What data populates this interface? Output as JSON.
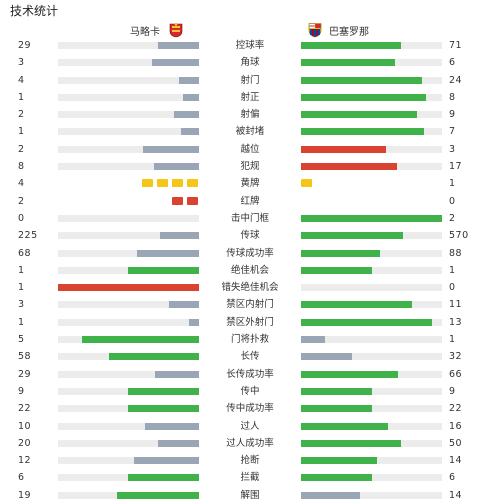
{
  "title": "技术统计",
  "home": {
    "name": "马略卡",
    "logo_icon": "mallorca-crest-icon",
    "logo_colors": [
      "#d12b2b",
      "#f1c232"
    ]
  },
  "away": {
    "name": "巴塞罗那",
    "logo_icon": "barcelona-crest-icon",
    "logo_colors": [
      "#a50044",
      "#004d98",
      "#edbb00"
    ]
  },
  "colors": {
    "green": "#3fb24a",
    "gray": "#9aa6b5",
    "red": "#d9432f",
    "yellow": "#f5c518",
    "track": "#ececec"
  },
  "stats": [
    {
      "label": "控球率",
      "home": "29",
      "away": "71",
      "home_fill": 0.29,
      "away_fill": 0.71,
      "home_color": "gray",
      "away_color": "green"
    },
    {
      "label": "角球",
      "home": "3",
      "away": "6",
      "home_fill": 0.33,
      "away_fill": 0.67,
      "home_color": "gray",
      "away_color": "green"
    },
    {
      "label": "射门",
      "home": "4",
      "away": "24",
      "home_fill": 0.14,
      "away_fill": 0.86,
      "home_color": "gray",
      "away_color": "green"
    },
    {
      "label": "射正",
      "home": "1",
      "away": "8",
      "home_fill": 0.11,
      "away_fill": 0.89,
      "home_color": "gray",
      "away_color": "green"
    },
    {
      "label": "射偏",
      "home": "2",
      "away": "9",
      "home_fill": 0.18,
      "away_fill": 0.82,
      "home_color": "gray",
      "away_color": "green"
    },
    {
      "label": "被封堵",
      "home": "1",
      "away": "7",
      "home_fill": 0.125,
      "away_fill": 0.875,
      "home_color": "gray",
      "away_color": "green"
    },
    {
      "label": "越位",
      "home": "2",
      "away": "3",
      "home_fill": 0.4,
      "away_fill": 0.6,
      "home_color": "gray",
      "away_color": "red"
    },
    {
      "label": "犯规",
      "home": "8",
      "away": "17",
      "home_fill": 0.32,
      "away_fill": 0.68,
      "home_color": "gray",
      "away_color": "red"
    },
    {
      "label": "黄牌",
      "home": "4",
      "away": "1",
      "cards": "yellow",
      "home_cards": 4,
      "away_cards": 1
    },
    {
      "label": "红牌",
      "home": "2",
      "away": "0",
      "cards": "red",
      "home_cards": 2,
      "away_cards": 0
    },
    {
      "label": "击中门框",
      "home": "0",
      "away": "2",
      "home_fill": 0,
      "away_fill": 1.0,
      "home_color": "gray",
      "away_color": "green"
    },
    {
      "label": "传球",
      "home": "225",
      "away": "570",
      "home_fill": 0.28,
      "away_fill": 0.72,
      "home_color": "gray",
      "away_color": "green"
    },
    {
      "label": "传球成功率",
      "home": "68",
      "away": "88",
      "home_fill": 0.44,
      "away_fill": 0.56,
      "home_color": "gray",
      "away_color": "green"
    },
    {
      "label": "绝佳机会",
      "home": "1",
      "away": "1",
      "home_fill": 0.5,
      "away_fill": 0.5,
      "home_color": "green",
      "away_color": "green"
    },
    {
      "label": "错失绝佳机会",
      "home": "1",
      "away": "0",
      "home_fill": 1.0,
      "away_fill": 0,
      "home_color": "red",
      "away_color": "red"
    },
    {
      "label": "禁区内射门",
      "home": "3",
      "away": "11",
      "home_fill": 0.21,
      "away_fill": 0.79,
      "home_color": "gray",
      "away_color": "green"
    },
    {
      "label": "禁区外射门",
      "home": "1",
      "away": "13",
      "home_fill": 0.07,
      "away_fill": 0.93,
      "home_color": "gray",
      "away_color": "green"
    },
    {
      "label": "门将扑救",
      "home": "5",
      "away": "1",
      "home_fill": 0.83,
      "away_fill": 0.17,
      "home_color": "green",
      "away_color": "gray"
    },
    {
      "label": "长传",
      "home": "58",
      "away": "32",
      "home_fill": 0.64,
      "away_fill": 0.36,
      "home_color": "green",
      "away_color": "gray"
    },
    {
      "label": "长传成功率",
      "home": "29",
      "away": "66",
      "home_fill": 0.31,
      "away_fill": 0.69,
      "home_color": "gray",
      "away_color": "green"
    },
    {
      "label": "传中",
      "home": "9",
      "away": "9",
      "home_fill": 0.5,
      "away_fill": 0.5,
      "home_color": "green",
      "away_color": "green"
    },
    {
      "label": "传中成功率",
      "home": "22",
      "away": "22",
      "home_fill": 0.5,
      "away_fill": 0.5,
      "home_color": "green",
      "away_color": "green"
    },
    {
      "label": "过人",
      "home": "10",
      "away": "16",
      "home_fill": 0.38,
      "away_fill": 0.62,
      "home_color": "gray",
      "away_color": "green"
    },
    {
      "label": "过人成功率",
      "home": "20",
      "away": "50",
      "home_fill": 0.29,
      "away_fill": 0.71,
      "home_color": "gray",
      "away_color": "green"
    },
    {
      "label": "抢断",
      "home": "12",
      "away": "14",
      "home_fill": 0.46,
      "away_fill": 0.54,
      "home_color": "gray",
      "away_color": "green"
    },
    {
      "label": "拦截",
      "home": "6",
      "away": "6",
      "home_fill": 0.5,
      "away_fill": 0.5,
      "home_color": "green",
      "away_color": "green"
    },
    {
      "label": "解围",
      "home": "19",
      "away": "14",
      "home_fill": 0.58,
      "away_fill": 0.42,
      "home_color": "green",
      "away_color": "gray"
    }
  ]
}
